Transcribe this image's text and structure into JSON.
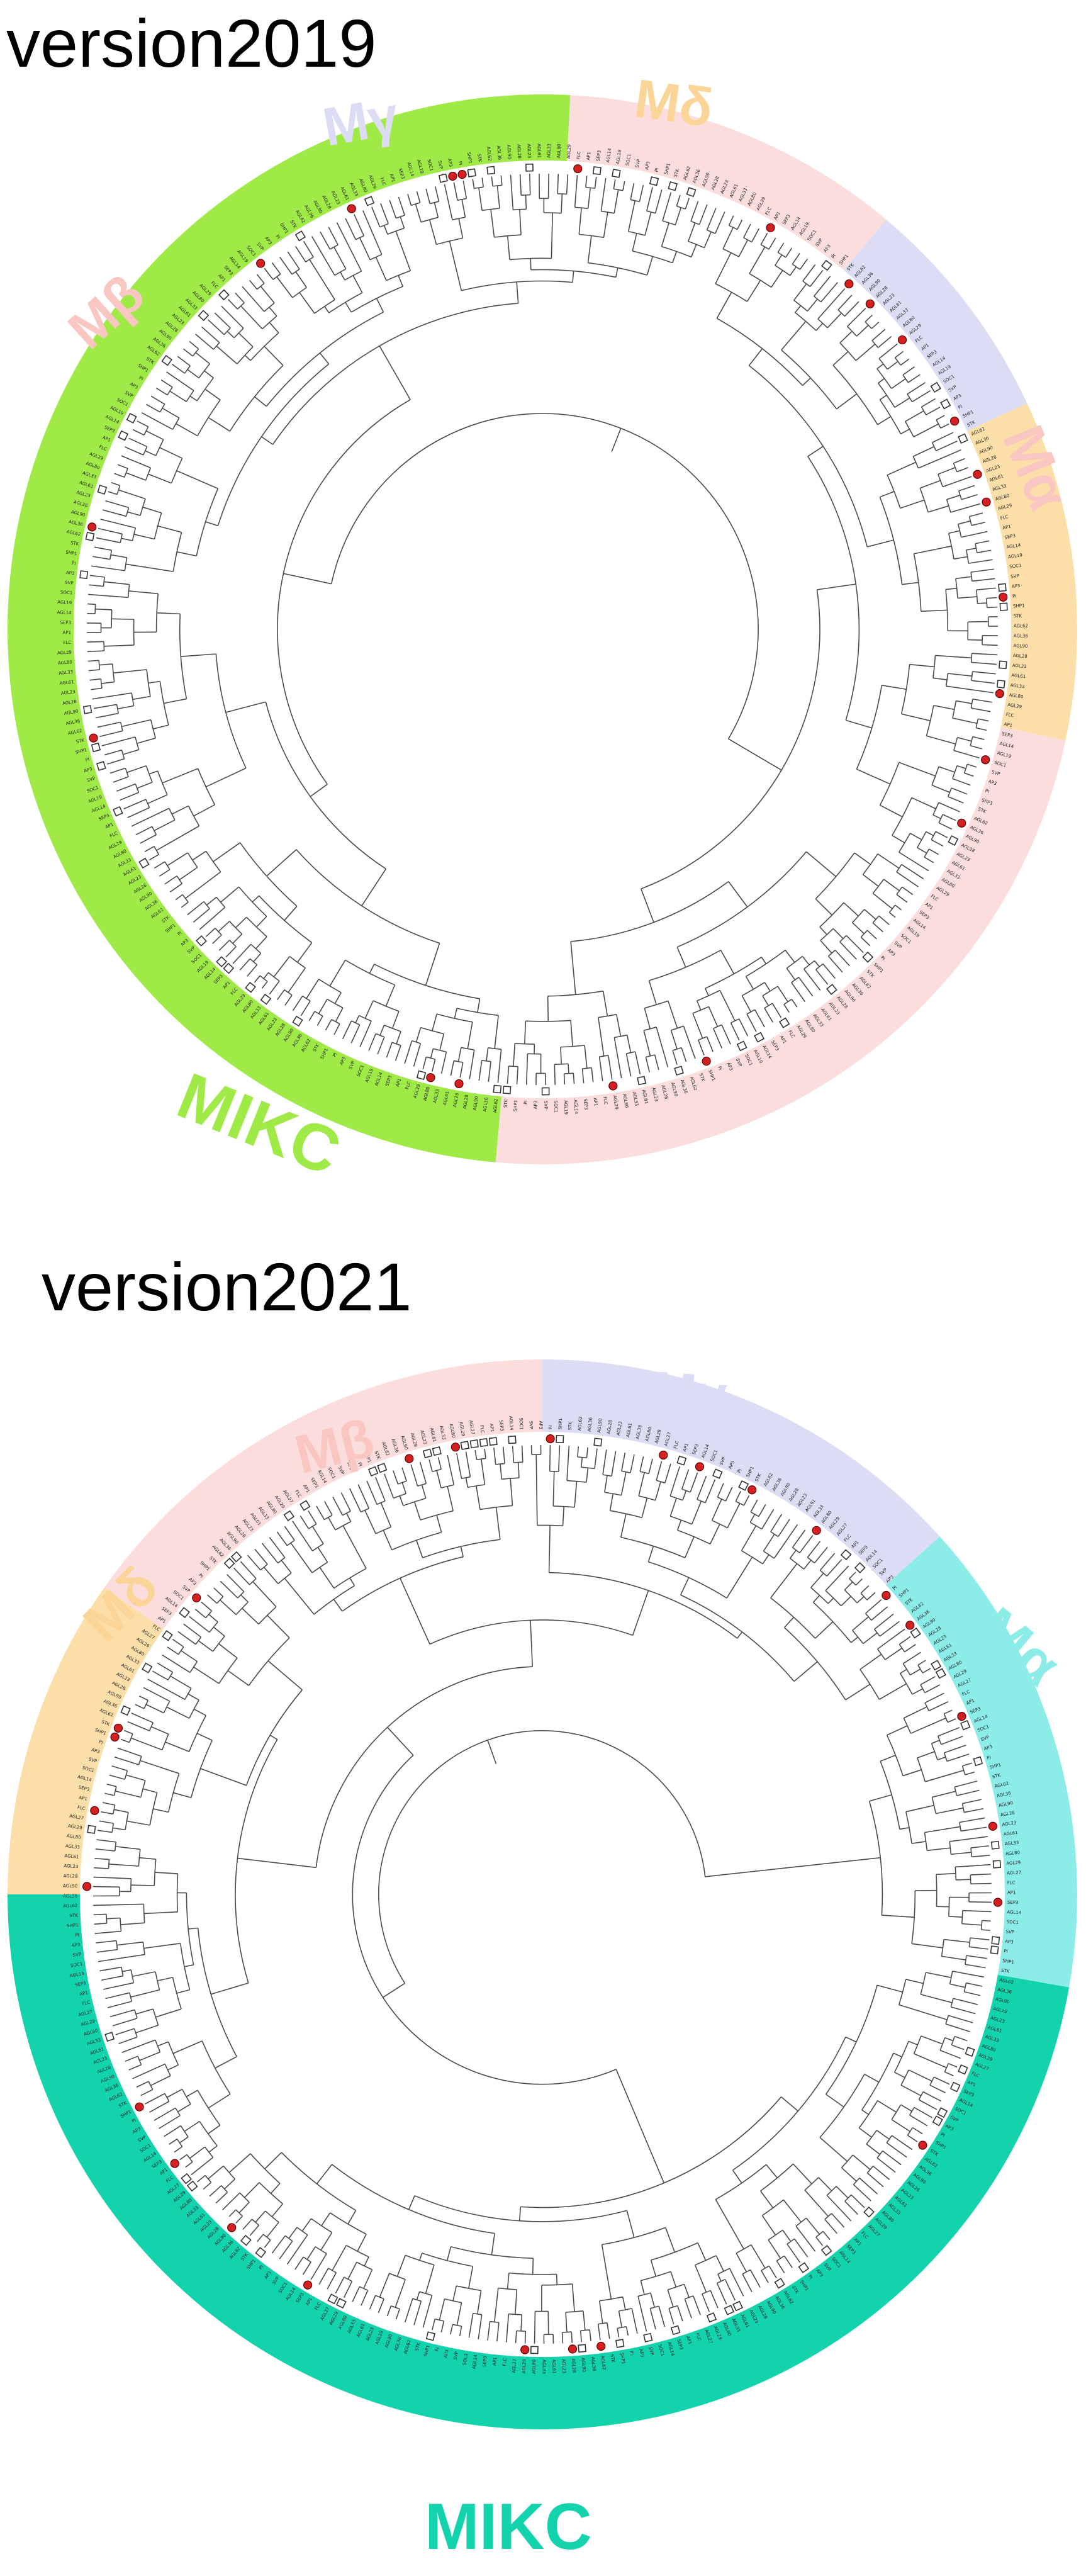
{
  "colors": {
    "mikc_2019": "#9FEA46",
    "alpha_2019": "#FCDDDD",
    "beta_2019": "#FCDDDD",
    "gamma_2019": "#DCDDF5",
    "delta_2019": "#FCDFA8",
    "mikc_2021": "#12D3AC",
    "alpha_2021": "#8BECE8",
    "beta_2021": "#FCDDDD",
    "gamma_2021": "#DCDDF5",
    "delta_2021": "#FCDFA8",
    "label_mikc_2019": "#9FEA46",
    "label_alpha_2019": "#F9C6C2",
    "label_beta_2019": "#F9C6C2",
    "label_gamma_2019": "#DCDDF5",
    "label_delta_2019": "#FBD497",
    "label_mikc_2021": "#12D3AC",
    "label_alpha_2021": "#8BECE8",
    "label_beta_2021": "#F9C6C2",
    "label_gamma_2021": "#DCDDF5",
    "label_delta_2021": "#FBD497",
    "marker_red": "#D42020"
  },
  "panels": [
    {
      "id": "v2019",
      "title": "version2019",
      "clade_labels": {
        "mikc": "MIKC",
        "alpha": "Mα",
        "beta": "Mβ",
        "gamma": "Mγ",
        "delta": "Mδ"
      },
      "sample_leaf_labels": [
        "AGL62",
        "AGL36",
        "AGL90",
        "AGL28",
        "AGL23",
        "AGL61",
        "AGL33",
        "AGL80",
        "AGL29",
        "FLC",
        "AP1",
        "SEP3",
        "AGL14",
        "AGL19",
        "SOC1",
        "SVP",
        "AP3",
        "PI",
        "SHP1",
        "STK"
      ]
    },
    {
      "id": "v2021",
      "title": "version2021",
      "clade_labels": {
        "mikc": "MIKC",
        "alpha": "Mα",
        "beta": "Mβ",
        "gamma": "Mγ",
        "delta": "Mδ"
      },
      "sample_leaf_labels": [
        "AGL62",
        "AGL36",
        "AGL90",
        "AGL28",
        "AGL23",
        "AGL61",
        "AGL33",
        "AGL80",
        "AGL29",
        "AGL27",
        "FLC",
        "AP1",
        "SEP3",
        "AGL14",
        "SOC1",
        "SVP",
        "AP3",
        "PI",
        "SHP1",
        "STK"
      ]
    }
  ]
}
